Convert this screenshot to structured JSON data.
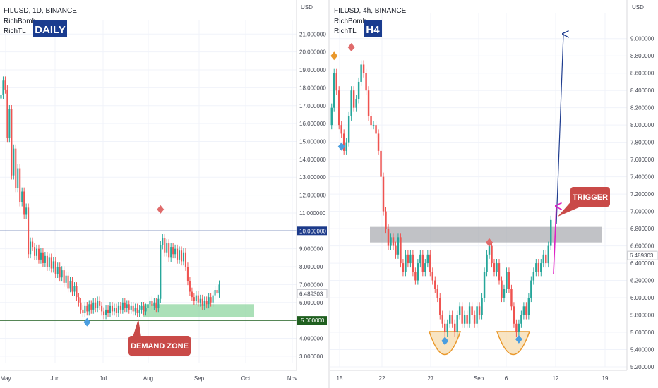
{
  "chart_data": [
    {
      "type": "candlestick",
      "symbol_line": "FILUSD, 1D, BINANCE",
      "indicators": [
        "RichBomb",
        "RichTL"
      ],
      "badge": "DAILY",
      "currency": "USD",
      "ylim": [
        2.6,
        21.8
      ],
      "y_ticks": [
        "3.000000",
        "4.000000",
        "5.000000",
        "6.000000",
        "7.000000",
        "8.000000",
        "9.000000",
        "11.000000",
        "12.000000",
        "13.000000",
        "14.000000",
        "15.000000",
        "16.000000",
        "17.000000",
        "18.000000",
        "19.000000",
        "20.000000",
        "21.000000"
      ],
      "x_ticks": [
        "May",
        "Jun",
        "Jul",
        "Aug",
        "Sep",
        "Oct",
        "Nov"
      ],
      "price_tag": "6.489303",
      "level_high": {
        "label": "10.000000",
        "value": 10.0
      },
      "level_low": {
        "label": "5.000000",
        "value": 5.0
      },
      "demand_zone": {
        "label": "DEMAND ZONE",
        "from": 5.2,
        "to": 5.9
      },
      "closes": [
        17.6,
        18.4,
        17.9,
        15.2,
        16.8,
        13.1,
        14.6,
        12.4,
        13.5,
        11.6,
        12.2,
        10.9,
        11.3,
        8.7,
        9.4,
        9.1,
        8.6,
        9.0,
        8.4,
        8.8,
        8.2,
        8.6,
        8.0,
        8.5,
        7.9,
        8.3,
        7.6,
        8.0,
        7.4,
        7.8,
        7.1,
        7.5,
        6.8,
        7.2,
        6.6,
        6.9,
        6.3,
        6.0,
        5.6,
        5.4,
        5.8,
        5.5,
        5.9,
        5.6,
        6.0,
        5.7,
        6.1,
        5.8,
        5.5,
        5.3,
        5.6,
        5.4,
        5.8,
        5.5,
        5.7,
        5.4,
        5.8,
        5.6,
        6.0,
        5.7,
        5.9,
        5.6,
        5.8,
        5.5,
        5.7,
        5.4,
        5.6,
        5.8,
        5.5,
        5.7,
        5.9,
        6.1,
        5.8,
        6.0,
        5.7,
        6.2,
        9.2,
        9.6,
        8.8,
        9.3,
        8.5,
        9.1,
        8.7,
        9.0,
        8.4,
        8.9,
        8.3,
        8.8,
        8.0,
        7.2,
        6.6,
        6.3,
        6.1,
        6.4,
        6.0,
        6.2,
        5.8,
        6.1,
        5.9,
        6.3,
        6.0,
        6.4,
        6.7,
        6.5,
        7.0
      ],
      "signals": [
        {
          "index": 41,
          "value": 4.9,
          "dir": "down",
          "color": "#4a9ee0"
        },
        {
          "index": 76,
          "value": 11.2,
          "dir": "up",
          "color": "#e06b6b"
        }
      ]
    },
    {
      "type": "candlestick",
      "symbol_line": "FILUSD, 4h, BINANCE",
      "indicators": [
        "RichBomb",
        "RichTL"
      ],
      "badge": "H4",
      "currency": "USD",
      "ylim": [
        5.2,
        9.3
      ],
      "y_ticks": [
        "5.200000",
        "5.400000",
        "5.600000",
        "5.800000",
        "6.000000",
        "6.200000",
        "6.400000",
        "6.600000",
        "6.800000",
        "7.000000",
        "7.200000",
        "7.400000",
        "7.600000",
        "7.800000",
        "8.000000",
        "8.200000",
        "8.400000",
        "8.600000",
        "8.800000",
        "9.000000"
      ],
      "x_ticks": [
        "15",
        "22",
        "27",
        "Sep",
        "6",
        "12",
        "19"
      ],
      "price_tag": "6.489303",
      "resistance_zone": {
        "from": 6.64,
        "to": 6.82
      },
      "trigger_label": "TRIGGER",
      "closes": [
        8.2,
        8.6,
        8.4,
        8.0,
        7.9,
        7.7,
        7.8,
        8.1,
        8.4,
        8.2,
        8.3,
        8.5,
        8.7,
        8.6,
        8.4,
        8.1,
        8.0,
        8.0,
        7.9,
        7.7,
        7.4,
        7.0,
        6.8,
        6.6,
        6.7,
        6.6,
        6.5,
        6.7,
        6.4,
        6.3,
        6.5,
        6.4,
        6.5,
        6.3,
        6.2,
        6.4,
        6.5,
        6.3,
        6.4,
        6.5,
        6.3,
        6.2,
        6.1,
        6.0,
        5.8,
        5.7,
        5.6,
        5.7,
        5.8,
        5.7,
        5.6,
        5.8,
        5.9,
        5.7,
        5.8,
        5.7,
        5.9,
        5.8,
        5.7,
        5.9,
        5.8,
        6.0,
        6.3,
        6.5,
        6.6,
        6.4,
        6.3,
        6.4,
        6.2,
        6.0,
        6.1,
        6.3,
        6.1,
        5.9,
        5.7,
        5.6,
        5.7,
        5.8,
        5.9,
        5.8,
        6.0,
        6.2,
        6.3,
        6.4,
        6.3,
        6.4,
        6.5,
        6.4,
        6.6,
        6.9
      ],
      "signals": [
        {
          "index": 1,
          "value": 8.8,
          "dir": "up",
          "color": "#e9982b"
        },
        {
          "index": 8,
          "value": 8.9,
          "dir": "up",
          "color": "#e06b6b"
        },
        {
          "index": 4,
          "value": 7.75,
          "dir": "down",
          "color": "#4a9ee0"
        },
        {
          "index": 46,
          "value": 5.5,
          "dir": "down",
          "color": "#4a9ee0"
        },
        {
          "index": 64,
          "value": 6.64,
          "dir": "up",
          "color": "#e06b6b"
        },
        {
          "index": 76,
          "value": 5.52,
          "dir": "down",
          "color": "#4a9ee0"
        }
      ]
    }
  ]
}
